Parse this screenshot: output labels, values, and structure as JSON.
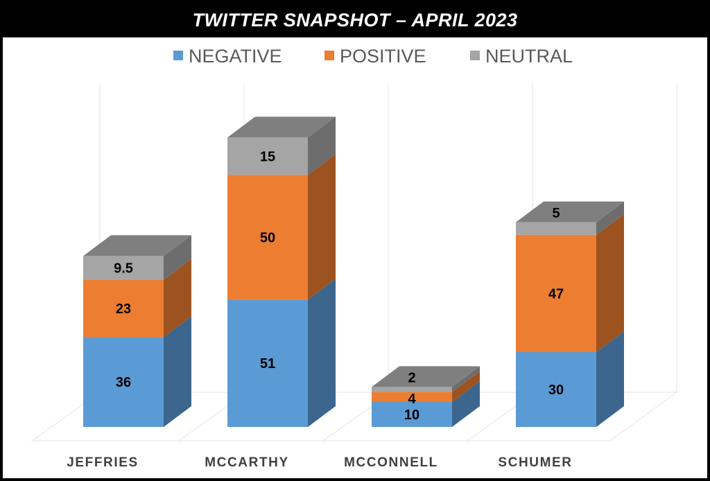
{
  "title": "TWITTER SNAPSHOT – APRIL 2023",
  "chart_data": {
    "type": "bar",
    "stacked": true,
    "style": "3d",
    "categories": [
      "JEFFRIES",
      "MCCARTHY",
      "MCCONNELL",
      "SCHUMER"
    ],
    "series": [
      {
        "name": "NEGATIVE",
        "color": "#5b9bd5",
        "values": [
          36,
          51,
          10,
          30
        ],
        "labels": [
          "36",
          "51",
          "10",
          "30"
        ]
      },
      {
        "name": "POSITIVE",
        "color": "#ed7d31",
        "values": [
          23,
          50,
          4,
          47
        ],
        "labels": [
          "23",
          "50",
          "4",
          "47"
        ]
      },
      {
        "name": "NEUTRAL",
        "color": "#a5a5a5",
        "values": [
          9.5,
          15,
          2,
          5
        ],
        "labels": [
          "9.5",
          "15",
          "2",
          "5"
        ]
      }
    ],
    "legend_position": "top",
    "grid": true,
    "ylim": [
      0,
      130
    ]
  }
}
